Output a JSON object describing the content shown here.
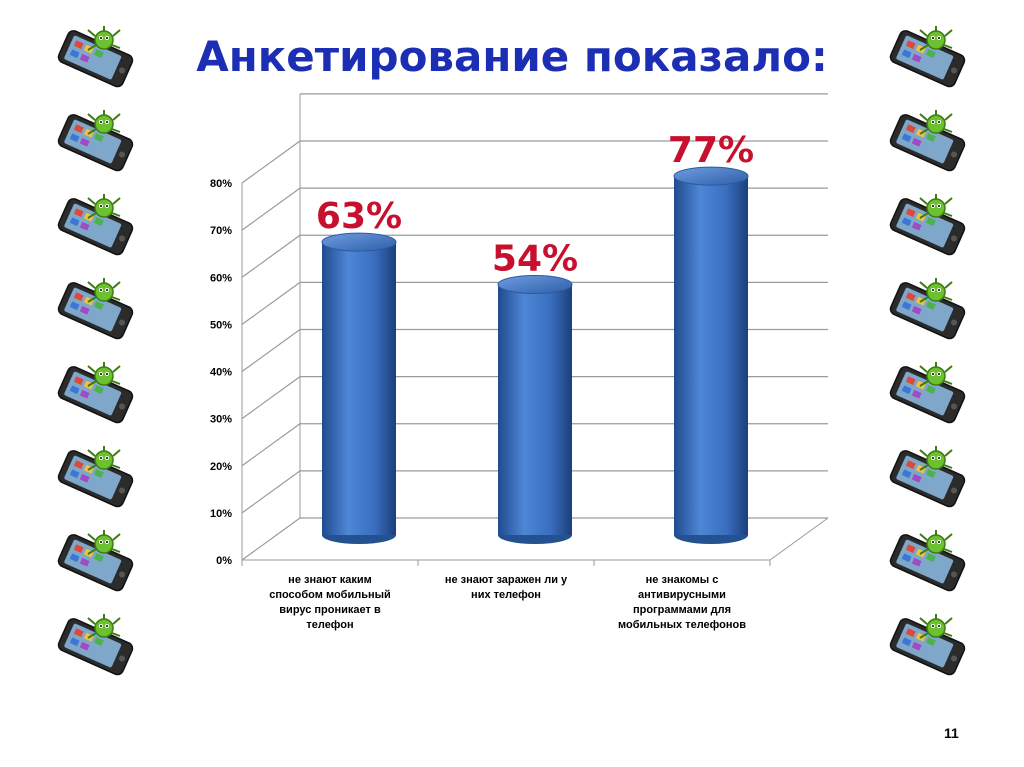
{
  "slide": {
    "title": "Анкетирование показало:",
    "page_number": "11"
  },
  "chart_data": {
    "type": "bar",
    "title": "",
    "xlabel": "",
    "ylabel": "",
    "categories": [
      "не знают каким способом мобильный вирус проникает в телефон",
      "не знают заражен ли у них телефон",
      "не знакомы с антивирусными программами для мобильных телефонов"
    ],
    "category_lines": [
      [
        "не знают каким",
        "способом мобильный",
        "вирус проникает в",
        "телефон"
      ],
      [
        "не знают заражен ли у",
        "них телефон"
      ],
      [
        "не знакомы с",
        "антивирусными",
        "программами для",
        "мобильных телефонов"
      ]
    ],
    "values": [
      63,
      54,
      77
    ],
    "value_labels": [
      "63%",
      "54%",
      "77%"
    ],
    "y_ticks": [
      "0%",
      "10%",
      "20%",
      "30%",
      "40%",
      "50%",
      "60%",
      "70%",
      "80%"
    ],
    "ylim": [
      0,
      80
    ],
    "grid": true,
    "style": "3d-cylinder",
    "colors": {
      "bar": "#3a6fc0",
      "bar_dark": "#1f4a8e",
      "value_label": "#c8102e",
      "grid": "#9a9a9a",
      "title": "#1c2fb4"
    }
  },
  "decorations": {
    "icon": "phone-virus-icon",
    "left_column_count": 8,
    "right_column_count": 8
  }
}
